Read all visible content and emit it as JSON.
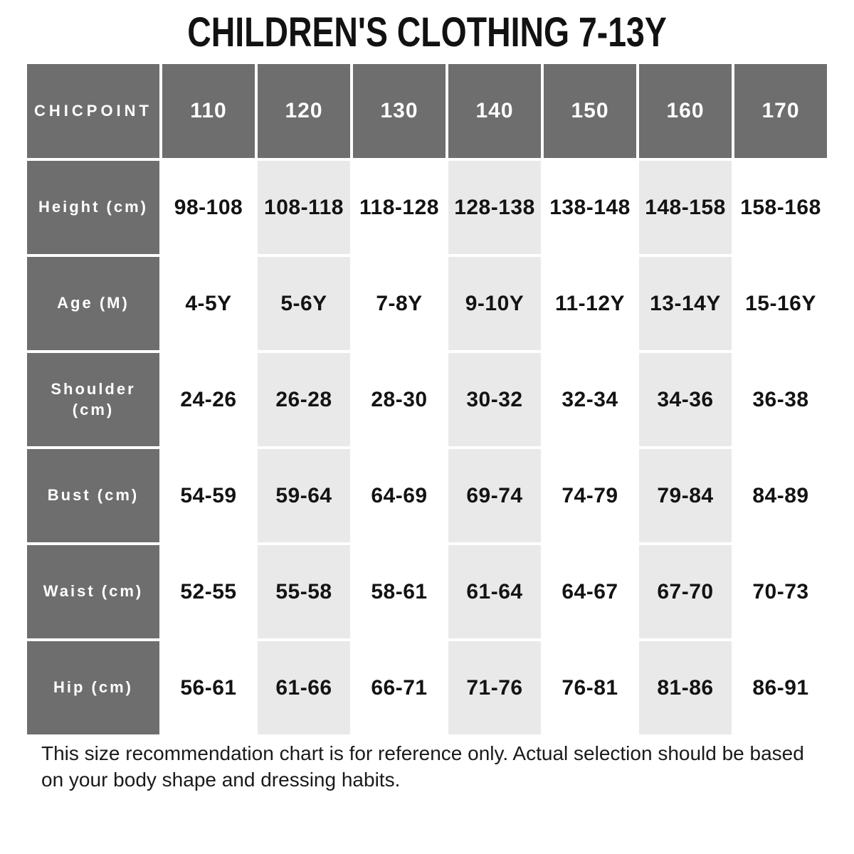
{
  "title": "CHILDREN'S CLOTHING 7-13Y",
  "colors": {
    "header_bg": "#6E6E6E",
    "header_text": "#FFFFFF",
    "alt_column_bg": "#E9E9E9",
    "body_text": "#131313",
    "page_bg": "#FFFFFF"
  },
  "chart_data": {
    "type": "table",
    "title": "CHILDREN'S CLOTHING 7-13Y",
    "corner_label": "CHICPOINT",
    "columns": [
      "110",
      "120",
      "130",
      "140",
      "150",
      "160",
      "170"
    ],
    "rows": [
      {
        "label": "Height (cm)",
        "values": [
          "98-108",
          "108-118",
          "118-128",
          "128-138",
          "138-148",
          "148-158",
          "158-168"
        ]
      },
      {
        "label": "Age (M)",
        "values": [
          "4-5Y",
          "5-6Y",
          "7-8Y",
          "9-10Y",
          "11-12Y",
          "13-14Y",
          "15-16Y"
        ]
      },
      {
        "label": "Shoulder (cm)",
        "values": [
          "24-26",
          "26-28",
          "28-30",
          "30-32",
          "32-34",
          "34-36",
          "36-38"
        ]
      },
      {
        "label": "Bust (cm)",
        "values": [
          "54-59",
          "59-64",
          "64-69",
          "69-74",
          "74-79",
          "79-84",
          "84-89"
        ]
      },
      {
        "label": "Waist (cm)",
        "values": [
          "52-55",
          "55-58",
          "58-61",
          "61-64",
          "64-67",
          "67-70",
          "70-73"
        ]
      },
      {
        "label": "Hip (cm)",
        "values": [
          "56-61",
          "61-66",
          "66-71",
          "71-76",
          "76-81",
          "81-86",
          "86-91"
        ]
      }
    ],
    "layout_hints": {
      "shaded_columns": [
        "120",
        "140",
        "160"
      ],
      "label_column_style": "dark-gray header cells"
    }
  },
  "footer": {
    "note": "This size recommendation chart is for reference only. Actual selection should be based on your body shape and dressing habits."
  }
}
